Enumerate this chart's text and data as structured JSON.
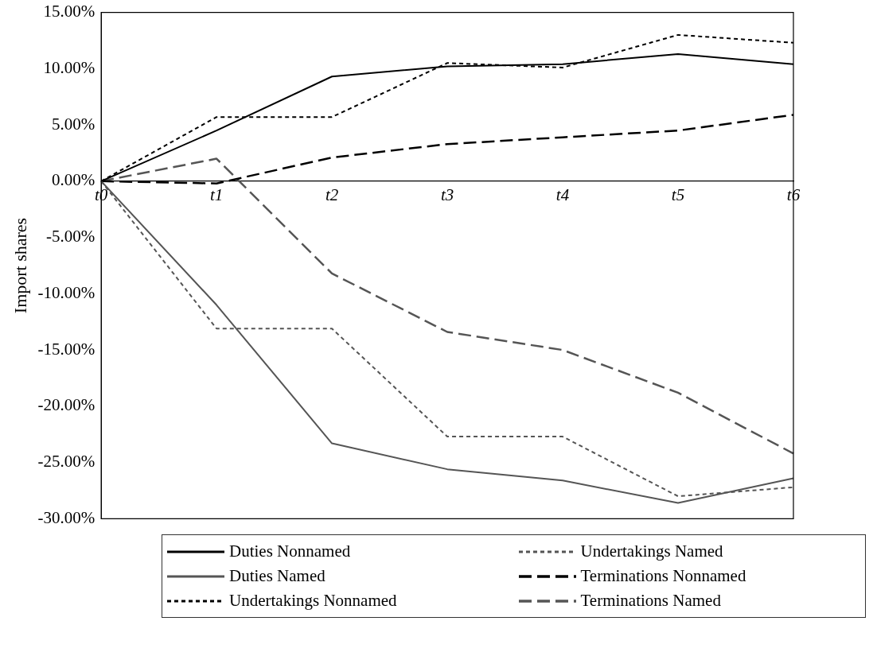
{
  "chart_data": {
    "type": "line",
    "ylabel": "Import shares",
    "categories": [
      "t0",
      "t1",
      "t2",
      "t3",
      "t4",
      "t5",
      "t6"
    ],
    "ylim": [
      -30,
      15
    ],
    "yticks": [
      {
        "value": -30,
        "label": "-30.00%"
      },
      {
        "value": -25,
        "label": "-25.00%"
      },
      {
        "value": -20,
        "label": "-20.00%"
      },
      {
        "value": -15,
        "label": "-15.00%"
      },
      {
        "value": -10,
        "label": "-10.00%"
      },
      {
        "value": -5,
        "label": "-5.00%"
      },
      {
        "value": 0,
        "label": "0.00%"
      },
      {
        "value": 5,
        "label": "5.00%"
      },
      {
        "value": 10,
        "label": "10.00%"
      },
      {
        "value": 15,
        "label": "15.00%"
      }
    ],
    "grid": false,
    "legend": "bottom",
    "marker": "none",
    "series": [
      {
        "name": "Duties Nonnamed",
        "color": "#000000",
        "line_style": "solid",
        "values": [
          0,
          4.5,
          9.3,
          10.2,
          10.4,
          11.3,
          10.4
        ]
      },
      {
        "name": "Undertakings Named",
        "color": "#555555",
        "line_style": "dotted",
        "values": [
          0,
          -13.1,
          -13.1,
          -22.7,
          -22.7,
          -28.0,
          -27.2
        ]
      },
      {
        "name": "Duties Named",
        "color": "#555555",
        "line_style": "solid",
        "values": [
          0,
          -11,
          -23.3,
          -25.6,
          -26.6,
          -28.6,
          -26.4
        ]
      },
      {
        "name": "Terminations Nonnamed",
        "color": "#000000",
        "line_style": "dashed",
        "values": [
          0,
          -0.2,
          2.1,
          3.3,
          3.9,
          4.5,
          5.9
        ]
      },
      {
        "name": "Undertakings Nonnamed",
        "color": "#000000",
        "line_style": "dotted",
        "values": [
          0,
          5.7,
          5.7,
          10.5,
          10.1,
          13.0,
          12.3
        ]
      },
      {
        "name": "Terminations Named",
        "color": "#555555",
        "line_style": "dashed",
        "values": [
          0,
          2.0,
          -8.2,
          -13.4,
          -15.0,
          -18.8,
          -24.2
        ]
      }
    ]
  }
}
